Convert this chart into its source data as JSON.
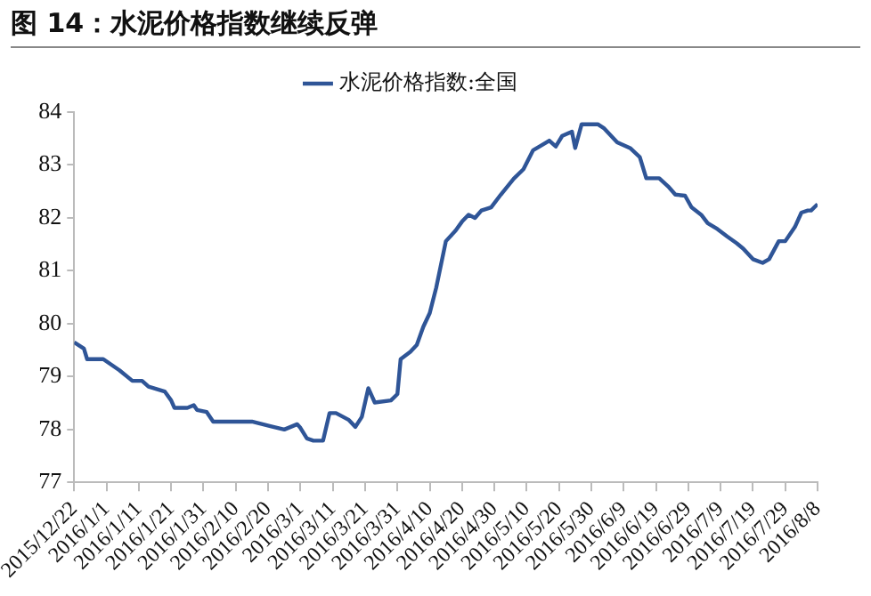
{
  "chart_data": {
    "type": "line",
    "title": "图 14：水泥价格指数继续反弹",
    "x": [
      "2015-12-22",
      "2015-12-25",
      "2015-12-26",
      "2015-12-31",
      "2016-01-05",
      "2016-01-09",
      "2016-01-12",
      "2016-01-14",
      "2016-01-19",
      "2016-01-21",
      "2016-01-22",
      "2016-01-26",
      "2016-01-28",
      "2016-01-29",
      "2016-02-01",
      "2016-02-03",
      "2016-02-15",
      "2016-02-21",
      "2016-02-25",
      "2016-02-29",
      "2016-03-01",
      "2016-03-03",
      "2016-03-05",
      "2016-03-08",
      "2016-03-10",
      "2016-03-12",
      "2016-03-16",
      "2016-03-18",
      "2016-03-20",
      "2016-03-22",
      "2016-03-24",
      "2016-03-29",
      "2016-03-31",
      "2016-04-01",
      "2016-04-04",
      "2016-04-06",
      "2016-04-08",
      "2016-04-10",
      "2016-04-12",
      "2016-04-15",
      "2016-04-18",
      "2016-04-20",
      "2016-04-22",
      "2016-04-24",
      "2016-04-26",
      "2016-04-29",
      "2016-05-02",
      "2016-05-06",
      "2016-05-09",
      "2016-05-12",
      "2016-05-14",
      "2016-05-17",
      "2016-05-19",
      "2016-05-21",
      "2016-05-24",
      "2016-05-25",
      "2016-05-27",
      "2016-06-01",
      "2016-06-03",
      "2016-06-07",
      "2016-06-11",
      "2016-06-14",
      "2016-06-16",
      "2016-06-20",
      "2016-06-23",
      "2016-06-25",
      "2016-06-28",
      "2016-06-30",
      "2016-07-03",
      "2016-07-05",
      "2016-07-08",
      "2016-07-11",
      "2016-07-14",
      "2016-07-16",
      "2016-07-19",
      "2016-07-22",
      "2016-07-24",
      "2016-07-27",
      "2016-07-29",
      "2016-08-01",
      "2016-08-03",
      "2016-08-05",
      "2016-08-06",
      "2016-08-08"
    ],
    "series": [
      {
        "name": "水泥价格指数:全国",
        "color": "#2f5597",
        "values": [
          79.65,
          79.53,
          79.33,
          79.33,
          79.12,
          78.92,
          78.92,
          78.81,
          78.72,
          78.55,
          78.41,
          78.41,
          78.46,
          78.37,
          78.33,
          78.15,
          78.15,
          78.06,
          78.0,
          78.1,
          78.03,
          77.83,
          77.79,
          77.79,
          78.31,
          78.31,
          78.18,
          78.05,
          78.24,
          78.78,
          78.51,
          78.55,
          78.67,
          79.33,
          79.47,
          79.6,
          79.94,
          80.2,
          80.68,
          81.56,
          81.76,
          81.93,
          82.06,
          82.0,
          82.14,
          82.2,
          82.44,
          82.74,
          82.92,
          83.28,
          83.35,
          83.46,
          83.35,
          83.55,
          83.63,
          83.32,
          83.77,
          83.77,
          83.69,
          83.43,
          83.32,
          83.15,
          82.75,
          82.75,
          82.58,
          82.44,
          82.42,
          82.2,
          82.06,
          81.9,
          81.79,
          81.65,
          81.52,
          81.42,
          81.22,
          81.15,
          81.22,
          81.56,
          81.56,
          81.83,
          82.1,
          82.14,
          82.14,
          82.26
        ]
      }
    ],
    "xlim": [
      "2015-12-22",
      "2016-08-08"
    ],
    "xticks": [
      {
        "value": "2015-12-22",
        "label": "2015/12/22"
      },
      {
        "value": "2016-01-01",
        "label": "2016/1/1"
      },
      {
        "value": "2016-01-11",
        "label": "2016/1/11"
      },
      {
        "value": "2016-01-21",
        "label": "2016/1/21"
      },
      {
        "value": "2016-01-31",
        "label": "2016/1/31"
      },
      {
        "value": "2016-02-10",
        "label": "2016/2/10"
      },
      {
        "value": "2016-02-20",
        "label": "2016/2/20"
      },
      {
        "value": "2016-03-01",
        "label": "2016/3/1"
      },
      {
        "value": "2016-03-11",
        "label": "2016/3/11"
      },
      {
        "value": "2016-03-21",
        "label": "2016/3/21"
      },
      {
        "value": "2016-03-31",
        "label": "2016/3/31"
      },
      {
        "value": "2016-04-10",
        "label": "2016/4/10"
      },
      {
        "value": "2016-04-20",
        "label": "2016/4/20"
      },
      {
        "value": "2016-04-30",
        "label": "2016/4/30"
      },
      {
        "value": "2016-05-10",
        "label": "2016/5/10"
      },
      {
        "value": "2016-05-20",
        "label": "2016/5/20"
      },
      {
        "value": "2016-05-30",
        "label": "2016/5/30"
      },
      {
        "value": "2016-06-09",
        "label": "2016/6/9"
      },
      {
        "value": "2016-06-19",
        "label": "2016/6/19"
      },
      {
        "value": "2016-06-29",
        "label": "2016/6/29"
      },
      {
        "value": "2016-07-09",
        "label": "2016/7/9"
      },
      {
        "value": "2016-07-19",
        "label": "2016/7/19"
      },
      {
        "value": "2016-07-29",
        "label": "2016/7/29"
      },
      {
        "value": "2016-08-08",
        "label": "2016/8/8"
      }
    ],
    "ylim": [
      77,
      84
    ],
    "yticks": [
      77,
      78,
      79,
      80,
      81,
      82,
      83,
      84
    ],
    "grid": false,
    "legend": "top",
    "marker": "none",
    "line_style": "solid"
  }
}
